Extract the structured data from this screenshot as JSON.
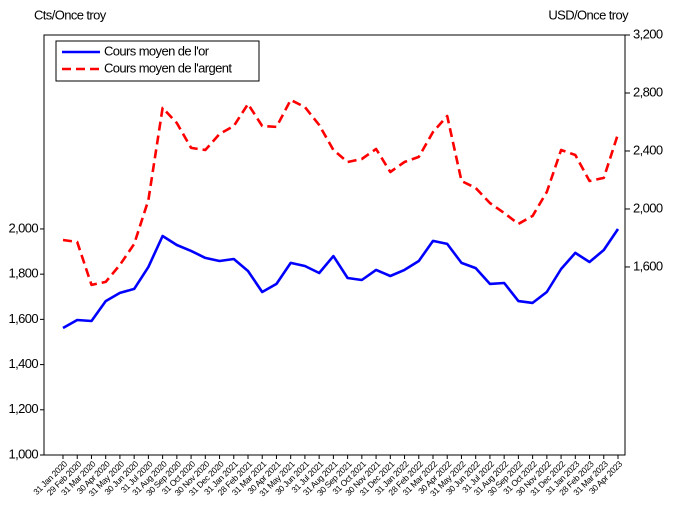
{
  "chart_data": {
    "type": "line",
    "y_label": "Cts/Once troy",
    "y2_label": "USD/Once troy",
    "categories": [
      "31 Jan 2020",
      "29 Feb 2020",
      "31 Mar 2020",
      "30 Apr 2020",
      "31 May 2020",
      "30 Jun 2020",
      "31 Jul 2020",
      "31 Aug 2020",
      "30 Sep 2020",
      "31 Oct 2020",
      "30 Nov 2020",
      "31 Dec 2020",
      "31 Jan 2021",
      "28 Feb 2021",
      "31 Mar 2021",
      "30 Apr 2021",
      "31 May 2021",
      "30 Jun 2021",
      "31 Jul 2021",
      "31 Aug 2021",
      "30 Sep 2021",
      "31 Oct 2021",
      "30 Nov 2021",
      "31 Dec 2021",
      "31 Jan 2022",
      "28 Feb 2022",
      "31 Mar 2022",
      "30 Apr 2022",
      "31 May 2022",
      "30 Jun 2022",
      "31 Jul 2022",
      "31 Aug 2022",
      "30 Sep 2022",
      "31 Oct 2022",
      "30 Nov 2022",
      "31 Dec 2022",
      "31 Jan 2023",
      "28 Feb 2023",
      "31 Mar 2023",
      "30 Apr 2023"
    ],
    "series": [
      {
        "name": "Cours moyen de l'or",
        "color": "#0000ff",
        "dash": false,
        "axis": "y",
        "values": [
          1562,
          1597,
          1593,
          1681,
          1717,
          1735,
          1832,
          1969,
          1929,
          1903,
          1872,
          1858,
          1867,
          1814,
          1721,
          1757,
          1850,
          1836,
          1805,
          1880,
          1783,
          1774,
          1819,
          1792,
          1819,
          1858,
          1947,
          1934,
          1850,
          1827,
          1757,
          1761,
          1681,
          1673,
          1721,
          1823,
          1894,
          1854,
          1907,
          2000
        ]
      },
      {
        "name": "Cours moyen de l'argent",
        "color": "#ff0000",
        "dash": true,
        "axis": "y2",
        "values": [
          1786,
          1772,
          1476,
          1497,
          1614,
          1759,
          2062,
          2697,
          2593,
          2421,
          2407,
          2517,
          2572,
          2724,
          2572,
          2566,
          2752,
          2703,
          2579,
          2407,
          2324,
          2345,
          2414,
          2255,
          2324,
          2359,
          2531,
          2641,
          2193,
          2145,
          2041,
          1972,
          1897,
          1952,
          2117,
          2407,
          2372,
          2193,
          2214,
          2517
        ]
      }
    ],
    "ylim": [
      1000,
      2858
    ],
    "yticks": [
      {
        "value": 1000,
        "label": "1,000"
      },
      {
        "value": 1200,
        "label": "1,200"
      },
      {
        "value": 1400,
        "label": "1,400"
      },
      {
        "value": 1600,
        "label": "1,600"
      },
      {
        "value": 1800,
        "label": "1,800"
      },
      {
        "value": 2000,
        "label": "2,000"
      }
    ],
    "y2lim": [
      303,
      3200
    ],
    "y2ticks": [
      {
        "value": 1600,
        "label": "1,600"
      },
      {
        "value": 2000,
        "label": "2,000"
      },
      {
        "value": 2400,
        "label": "2,400"
      },
      {
        "value": 2800,
        "label": "2,800"
      },
      {
        "value": 3200,
        "label": "3,200"
      }
    ],
    "legend": "top-left"
  }
}
